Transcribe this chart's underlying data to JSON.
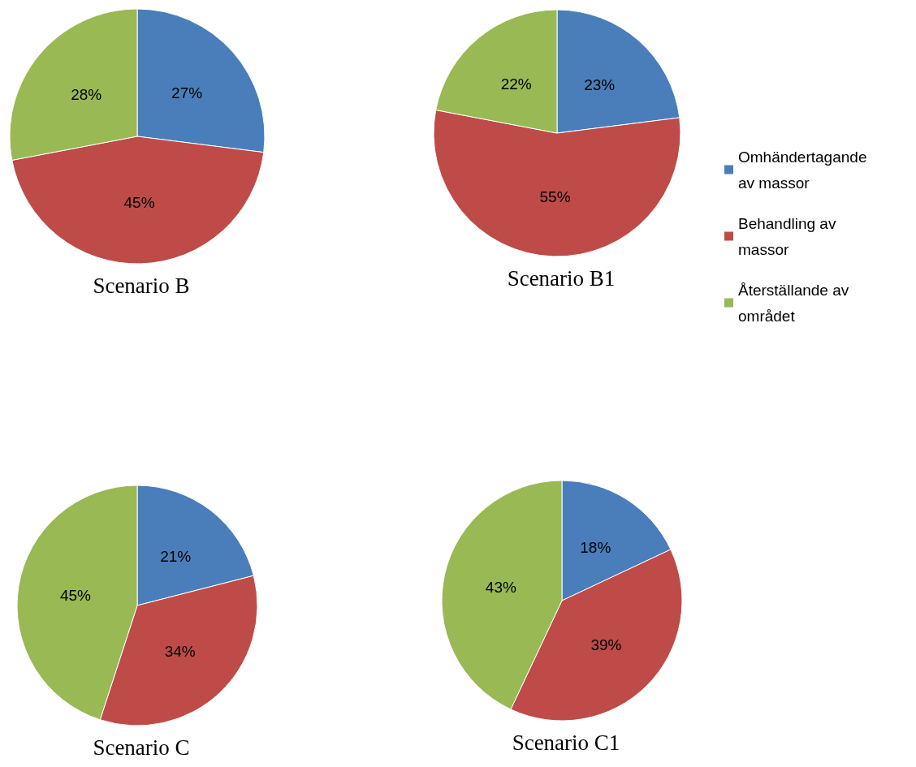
{
  "chart_data": [
    {
      "type": "pie",
      "title": "Scenario B",
      "categories": [
        null,
        null,
        null
      ],
      "values": [
        27,
        45,
        28
      ],
      "value_labels": [
        "27%",
        "45%",
        "28%"
      ],
      "colors": [
        "#4a7ebb",
        "#be4b48",
        "#98b954"
      ],
      "legend": false
    },
    {
      "type": "pie",
      "title": "Scenario B1",
      "categories": [
        "Omhändertagande av massor",
        "Behandling av massor",
        "Återställande av området"
      ],
      "values": [
        23,
        55,
        22
      ],
      "value_labels": [
        "23%",
        "55%",
        "22%"
      ],
      "colors": [
        "#4a7ebb",
        "#be4b48",
        "#98b954"
      ],
      "legend": "right"
    },
    {
      "type": "pie",
      "title": "Scenario C",
      "categories": [
        null,
        null,
        null
      ],
      "values": [
        21,
        34,
        45
      ],
      "value_labels": [
        "21%",
        "34%",
        "45%"
      ],
      "colors": [
        "#4a7ebb",
        "#be4b48",
        "#98b954"
      ],
      "legend": false
    },
    {
      "type": "pie",
      "title": "Scenario C1",
      "categories": [
        null,
        null,
        null
      ],
      "values": [
        18,
        39,
        43
      ],
      "value_labels": [
        "18%",
        "39%",
        "43%"
      ],
      "colors": [
        "#4a7ebb",
        "#be4b48",
        "#98b954"
      ],
      "legend": false
    }
  ]
}
